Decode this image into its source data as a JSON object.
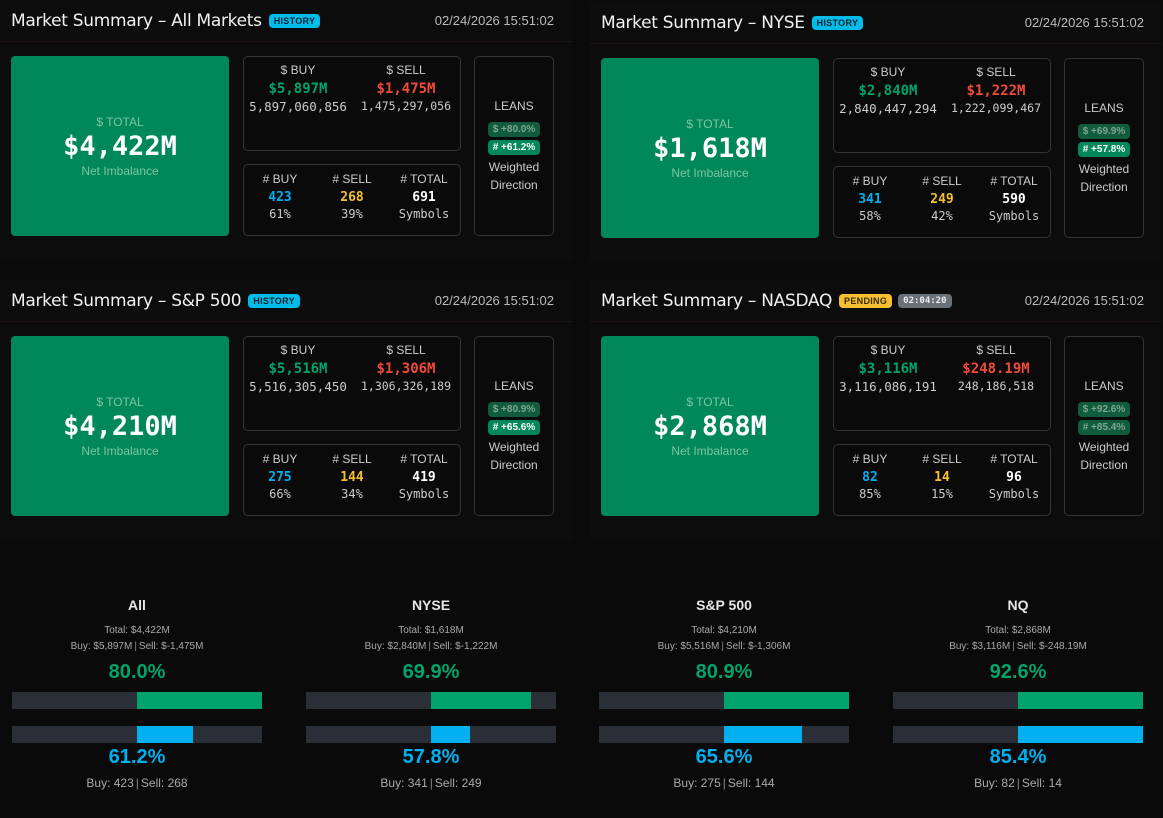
{
  "colors": {
    "buy": "#00a36c",
    "sell": "#f04a3a",
    "count_buy": "#00b0f0",
    "count_sell": "#f6c033",
    "total_bg": "#00875a"
  },
  "panels": [
    {
      "title": "Market Summary – All Markets",
      "badge": "HISTORY",
      "badge_type": "history",
      "timer": null,
      "timestamp": "02/24/2026 15:51:02",
      "total_label": "$ TOTAL",
      "total": "$4,422M",
      "total_sub": "Net Imbalance",
      "buy_label": "$ BUY",
      "buy": "$5,897M",
      "buy_raw": "5,897,060,856",
      "sell_label": "$ SELL",
      "sell": "$1,475M",
      "sell_raw": "1,475,297,056",
      "cbuy_label": "# BUY",
      "cbuy": "423",
      "cbuy_pct": "61%",
      "csell_label": "# SELL",
      "csell": "268",
      "csell_pct": "39%",
      "ctotal_label": "# TOTAL",
      "ctotal": "691",
      "ctotal_sub": "Symbols",
      "leans_label": "LEANS",
      "lean_dollar": {
        "text": "$ +80.0%",
        "active": false
      },
      "lean_count": {
        "text": "# +61.2%",
        "active": true
      },
      "leans_sub": "Weighted Direction"
    },
    {
      "title": "Market Summary – NYSE",
      "badge": "HISTORY",
      "badge_type": "history",
      "timer": null,
      "timestamp": "02/24/2026 15:51:02",
      "total_label": "$ TOTAL",
      "total": "$1,618M",
      "total_sub": "Net Imbalance",
      "buy_label": "$ BUY",
      "buy": "$2,840M",
      "buy_raw": "2,840,447,294",
      "sell_label": "$ SELL",
      "sell": "$1,222M",
      "sell_raw": "1,222,099,467",
      "cbuy_label": "# BUY",
      "cbuy": "341",
      "cbuy_pct": "58%",
      "csell_label": "# SELL",
      "csell": "249",
      "csell_pct": "42%",
      "ctotal_label": "# TOTAL",
      "ctotal": "590",
      "ctotal_sub": "Symbols",
      "leans_label": "LEANS",
      "lean_dollar": {
        "text": "$ +69.9%",
        "active": false
      },
      "lean_count": {
        "text": "# +57.8%",
        "active": true
      },
      "leans_sub": "Weighted Direction"
    },
    {
      "title": "Market Summary – S&P 500",
      "badge": "HISTORY",
      "badge_type": "history",
      "timer": null,
      "timestamp": "02/24/2026 15:51:02",
      "total_label": "$ TOTAL",
      "total": "$4,210M",
      "total_sub": "Net Imbalance",
      "buy_label": "$ BUY",
      "buy": "$5,516M",
      "buy_raw": "5,516,305,450",
      "sell_label": "$ SELL",
      "sell": "$1,306M",
      "sell_raw": "1,306,326,189",
      "cbuy_label": "# BUY",
      "cbuy": "275",
      "cbuy_pct": "66%",
      "csell_label": "# SELL",
      "csell": "144",
      "csell_pct": "34%",
      "ctotal_label": "# TOTAL",
      "ctotal": "419",
      "ctotal_sub": "Symbols",
      "leans_label": "LEANS",
      "lean_dollar": {
        "text": "$ +80.9%",
        "active": false
      },
      "lean_count": {
        "text": "# +65.6%",
        "active": true
      },
      "leans_sub": "Weighted Direction"
    },
    {
      "title": "Market Summary – NASDAQ",
      "badge": "PENDING",
      "badge_type": "pending",
      "timer": "02:04:20",
      "timestamp": "02/24/2026 15:51:02",
      "total_label": "$ TOTAL",
      "total": "$2,868M",
      "total_sub": "Net Imbalance",
      "buy_label": "$ BUY",
      "buy": "$3,116M",
      "buy_raw": "3,116,086,191",
      "sell_label": "$ SELL",
      "sell": "$248.19M",
      "sell_raw": "248,186,518",
      "cbuy_label": "# BUY",
      "cbuy": "82",
      "cbuy_pct": "85%",
      "csell_label": "# SELL",
      "csell": "14",
      "csell_pct": "15%",
      "ctotal_label": "# TOTAL",
      "ctotal": "96",
      "ctotal_sub": "Symbols",
      "leans_label": "LEANS",
      "lean_dollar": {
        "text": "$ +92.6%",
        "active": false
      },
      "lean_count": {
        "text": "# +85.4%",
        "active": false
      },
      "leans_sub": "Weighted Direction"
    }
  ],
  "markets": [
    {
      "name": "All",
      "total": "Total: $4,422M",
      "buy": "Buy: $5,897M",
      "sell": "Sell: $-1,475M",
      "dollar_pct_label": "80.0%",
      "dollar_pct": 80.0,
      "count_pct_label": "61.2%",
      "count_pct": 61.2,
      "count_buy": "Buy: 423",
      "count_sell": "Sell: 268"
    },
    {
      "name": "NYSE",
      "total": "Total: $1,618M",
      "buy": "Buy: $2,840M",
      "sell": "Sell: $-1,222M",
      "dollar_pct_label": "69.9%",
      "dollar_pct": 69.9,
      "count_pct_label": "57.8%",
      "count_pct": 57.8,
      "count_buy": "Buy: 341",
      "count_sell": "Sell: 249"
    },
    {
      "name": "S&P 500",
      "total": "Total: $4,210M",
      "buy": "Buy: $5,516M",
      "sell": "Sell: $-1,306M",
      "dollar_pct_label": "80.9%",
      "dollar_pct": 80.9,
      "count_pct_label": "65.6%",
      "count_pct": 65.6,
      "count_buy": "Buy: 275",
      "count_sell": "Sell: 144"
    },
    {
      "name": "NQ",
      "total": "Total: $2,868M",
      "buy": "Buy: $3,116M",
      "sell": "Sell: $-248.19M",
      "dollar_pct_label": "92.6%",
      "dollar_pct": 92.6,
      "count_pct_label": "85.4%",
      "count_pct": 85.4,
      "count_buy": "Buy: 82",
      "count_sell": "Sell: 14"
    }
  ]
}
